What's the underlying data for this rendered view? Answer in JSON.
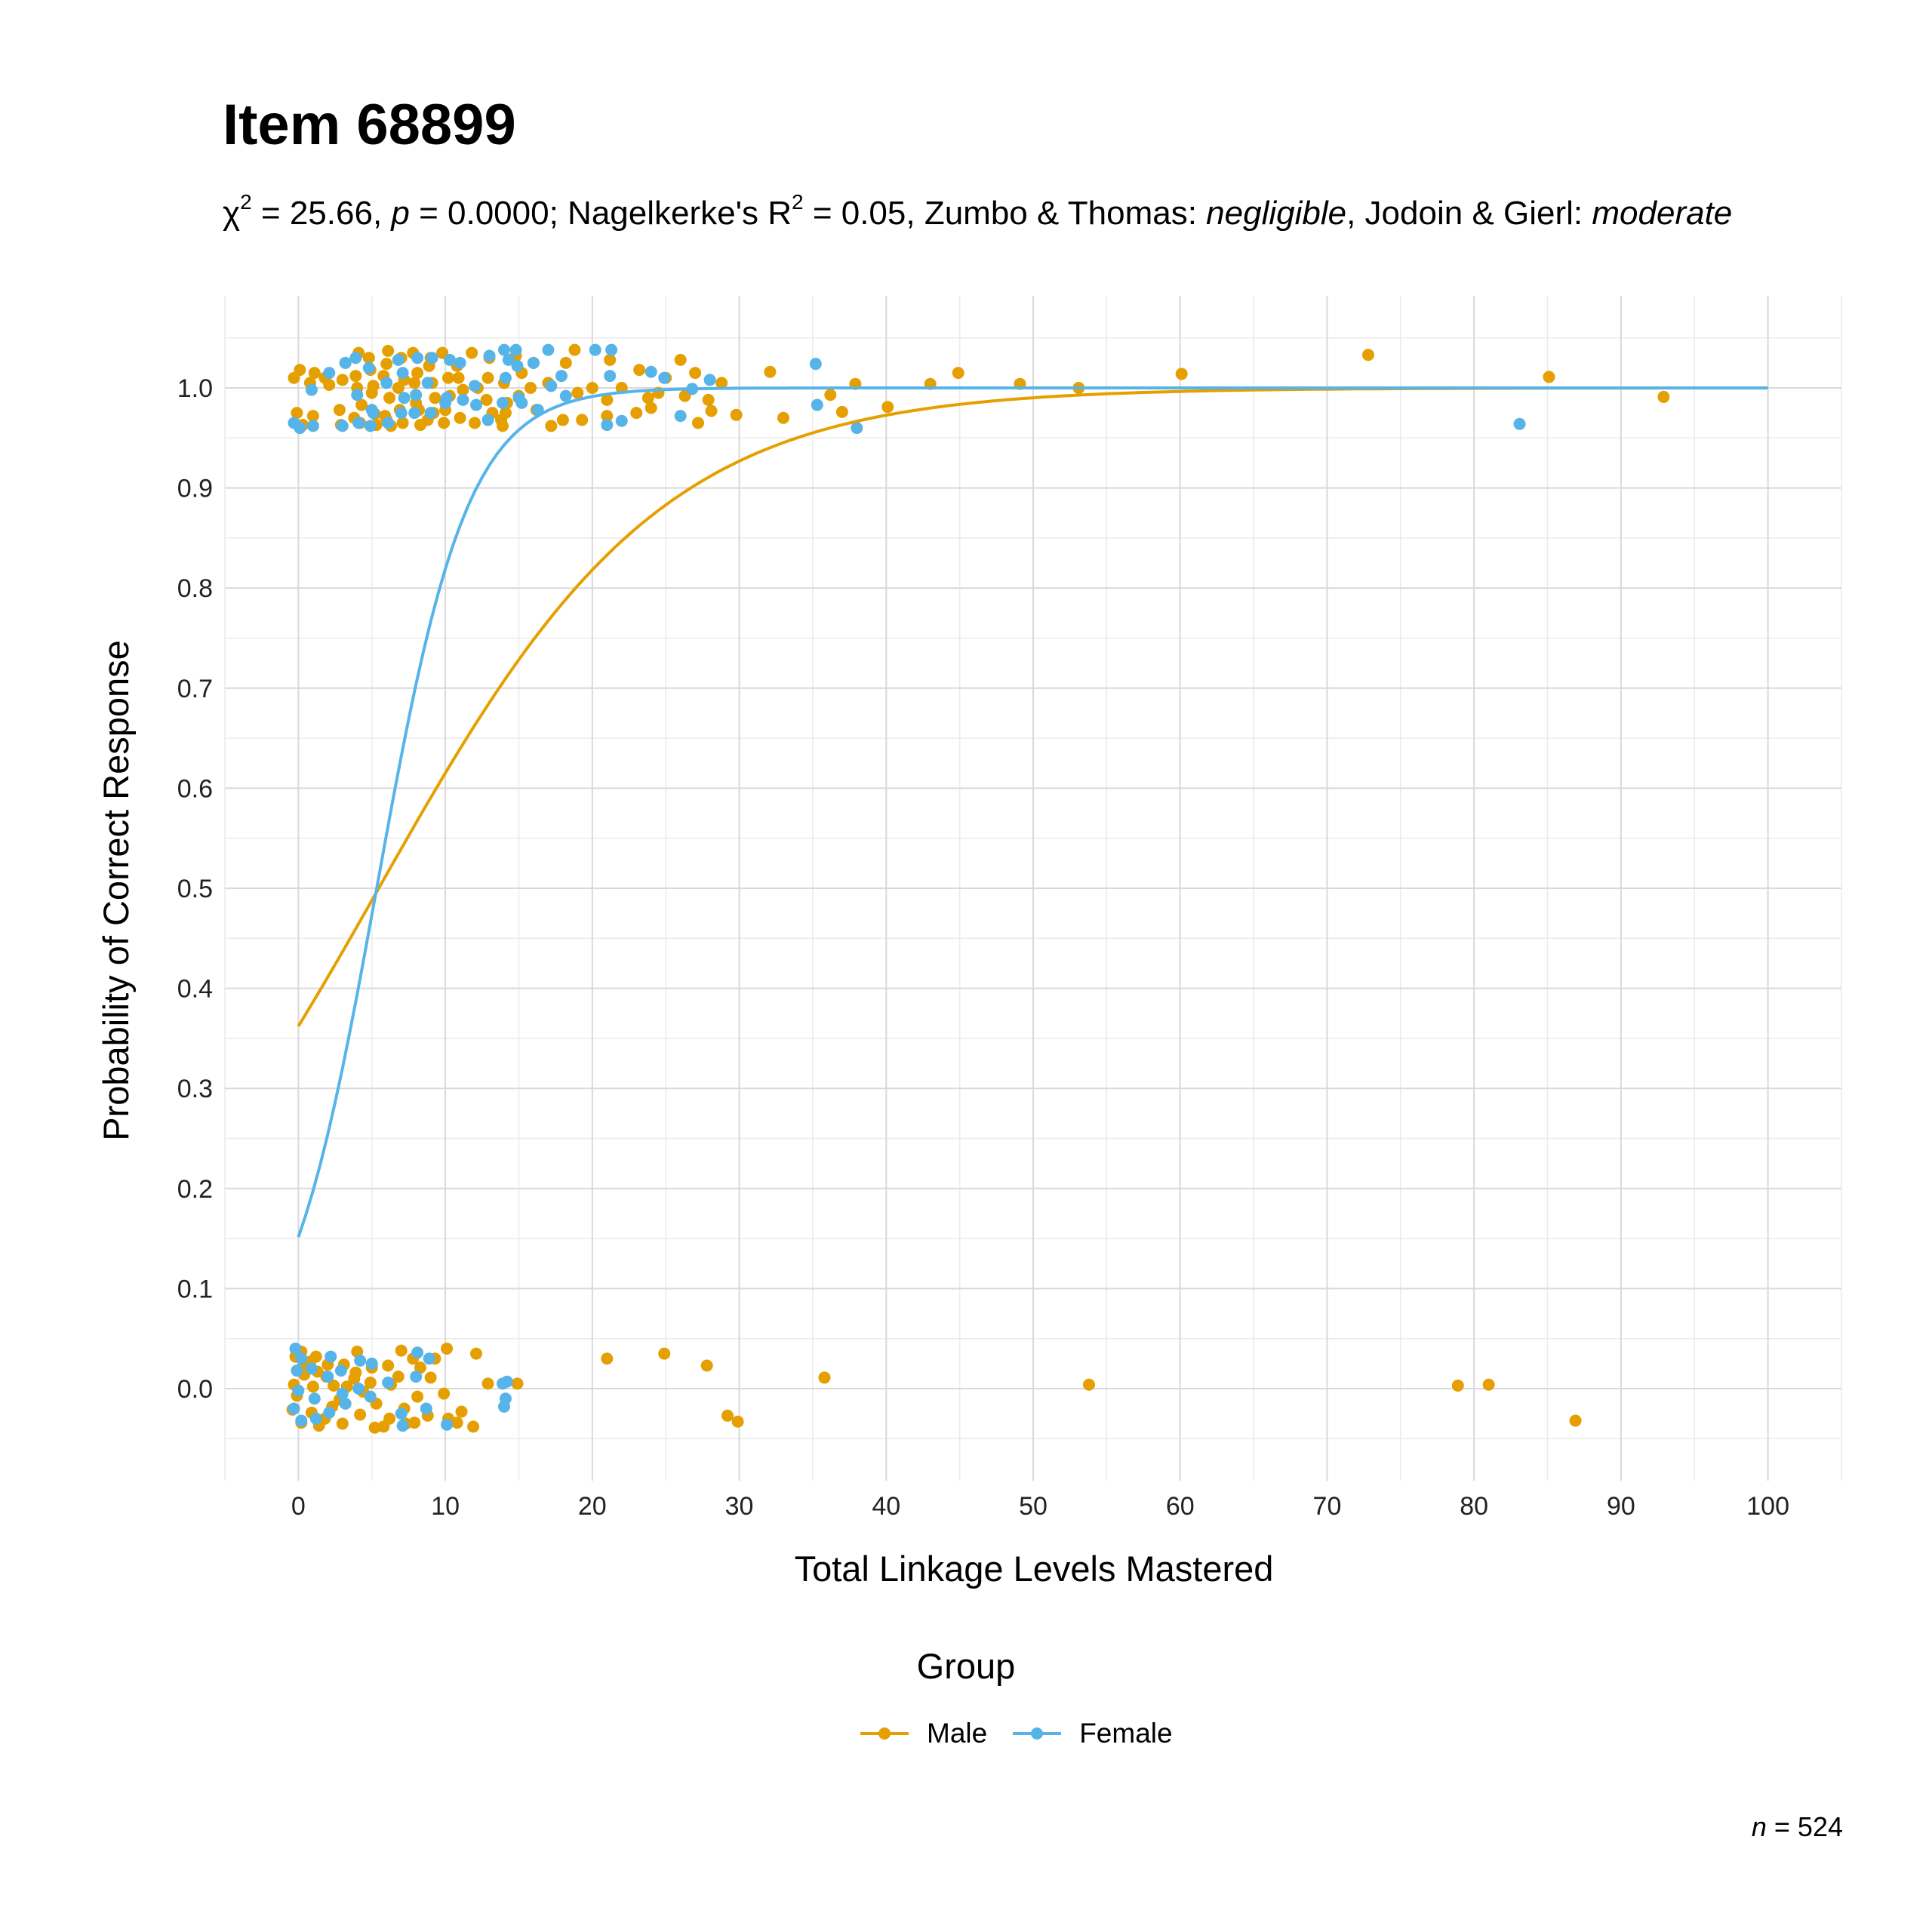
{
  "chart_data": {
    "type": "scatter",
    "title": "Item 68899",
    "subtitle": {
      "chi_label": "χ",
      "chi_sup": "2",
      "chi_value": " = 25.66, ",
      "p_label": "p",
      "p_value": " = 0.0000; Nagelkerke's R",
      "r_sup": "2",
      "r_value": " = 0.05, Zumbo & Thomas: ",
      "zt_rating": "negligible",
      "jg_label": ", Jodoin & Gierl: ",
      "jg_rating": "moderate"
    },
    "xlabel": "Total Linkage Levels Mastered",
    "ylabel": "Probability of Correct Response",
    "xlim": [
      -5,
      105
    ],
    "ylim": [
      -0.092,
      1.092
    ],
    "x_ticks": [
      0,
      10,
      20,
      30,
      40,
      50,
      60,
      70,
      80,
      90,
      100
    ],
    "y_ticks": [
      0.0,
      0.1,
      0.2,
      0.3,
      0.4,
      0.5,
      0.6,
      0.7,
      0.8,
      0.9,
      1.0
    ],
    "grid": true,
    "legend": {
      "title": "Group",
      "position": "bottom",
      "items": [
        {
          "label": "Male",
          "color": "#E69F00"
        },
        {
          "label": "Female",
          "color": "#56B4E9"
        }
      ]
    },
    "caption": {
      "n_label": "n",
      "n_value": " = 524"
    },
    "series": [
      {
        "name": "Male",
        "color": "#E69F00",
        "curve": {
          "intercept": -0.566,
          "slope": 0.1035,
          "x_range": [
            0,
            100
          ]
        },
        "points": [
          [
            -0.3,
            1.01
          ],
          [
            -0.1,
            0.975
          ],
          [
            0.1,
            1.018
          ],
          [
            0.3,
            0.963
          ],
          [
            -0.2,
            0.032
          ],
          [
            0.2,
            -0.034
          ],
          [
            0.4,
            0.014
          ],
          [
            -0.4,
            -0.021
          ],
          [
            0.2,
            0.037
          ],
          [
            -0.1,
            -0.007
          ],
          [
            0.3,
            0.022
          ],
          [
            -0.3,
            0.004
          ],
          [
            0.8,
            1.005
          ],
          [
            1.0,
            0.972
          ],
          [
            1.1,
            1.015
          ],
          [
            1.2,
            0.032
          ],
          [
            0.9,
            -0.024
          ],
          [
            1.3,
            0.017
          ],
          [
            1.0,
            0.002
          ],
          [
            1.4,
            -0.037
          ],
          [
            0.8,
            0.027
          ],
          [
            1.8,
            1.01
          ],
          [
            2.1,
            1.003
          ],
          [
            1.9,
            0.012
          ],
          [
            2.3,
            -0.018
          ],
          [
            2.0,
            0.024
          ],
          [
            2.4,
            0.003
          ],
          [
            1.8,
            -0.03
          ],
          [
            2.8,
            0.978
          ],
          [
            3.0,
            1.008
          ],
          [
            3.2,
            1.025
          ],
          [
            2.9,
            0.963
          ],
          [
            3.1,
            0.024
          ],
          [
            2.8,
            -0.011
          ],
          [
            3.3,
            0.002
          ],
          [
            3.0,
            -0.035
          ],
          [
            3.8,
            0.97
          ],
          [
            4.0,
            1.0
          ],
          [
            4.1,
            1.035
          ],
          [
            3.9,
            1.012
          ],
          [
            4.3,
            0.983
          ],
          [
            4.2,
            0.965
          ],
          [
            4.0,
            0.037
          ],
          [
            3.9,
            0.016
          ],
          [
            4.2,
            -0.026
          ],
          [
            4.4,
            -0.003
          ],
          [
            3.8,
            0.01
          ],
          [
            4.8,
            1.03
          ],
          [
            5.0,
            0.995
          ],
          [
            5.1,
            1.002
          ],
          [
            5.3,
            0.963
          ],
          [
            4.9,
            1.018
          ],
          [
            5.2,
            0.974
          ],
          [
            5.0,
            0.021
          ],
          [
            5.2,
            -0.039
          ],
          [
            4.9,
            0.006
          ],
          [
            5.3,
            -0.015
          ],
          [
            5.8,
            1.012
          ],
          [
            6.0,
            0.968
          ],
          [
            6.1,
            1.037
          ],
          [
            6.2,
            0.99
          ],
          [
            6.0,
            1.024
          ],
          [
            5.9,
            0.972
          ],
          [
            6.3,
            0.962
          ],
          [
            6.1,
            0.023
          ],
          [
            5.8,
            -0.038
          ],
          [
            6.2,
            -0.03
          ],
          [
            6.3,
            0.004
          ],
          [
            6.8,
            1.0
          ],
          [
            7.0,
            1.03
          ],
          [
            7.1,
            0.965
          ],
          [
            7.2,
            1.008
          ],
          [
            6.9,
            0.978
          ],
          [
            7.0,
            0.038
          ],
          [
            7.2,
            -0.02
          ],
          [
            6.8,
            0.012
          ],
          [
            7.3,
            -0.035
          ],
          [
            7.8,
            1.035
          ],
          [
            8.0,
            0.985
          ],
          [
            8.1,
            1.015
          ],
          [
            8.3,
            0.963
          ],
          [
            7.9,
            1.005
          ],
          [
            8.2,
            0.978
          ],
          [
            7.8,
            0.03
          ],
          [
            8.1,
            -0.008
          ],
          [
            8.3,
            0.021
          ],
          [
            7.9,
            -0.034
          ],
          [
            8.8,
            0.968
          ],
          [
            9.0,
            1.03
          ],
          [
            9.1,
            1.005
          ],
          [
            9.3,
            0.99
          ],
          [
            8.9,
            1.022
          ],
          [
            9.2,
            0.975
          ],
          [
            9.0,
            0.011
          ],
          [
            8.8,
            -0.027
          ],
          [
            9.3,
            0.03
          ],
          [
            9.8,
            1.035
          ],
          [
            10.0,
            0.978
          ],
          [
            10.2,
            1.01
          ],
          [
            9.9,
            0.965
          ],
          [
            10.3,
            0.992
          ],
          [
            10.1,
            0.04
          ],
          [
            9.9,
            -0.005
          ],
          [
            10.2,
            -0.03
          ],
          [
            10.8,
            1.022
          ],
          [
            11.0,
            0.97
          ],
          [
            11.2,
            0.998
          ],
          [
            10.9,
            1.01
          ],
          [
            11.1,
            -0.023
          ],
          [
            10.8,
            -0.034
          ],
          [
            11.8,
            1.035
          ],
          [
            12.0,
            0.965
          ],
          [
            12.2,
            1.0
          ],
          [
            12.1,
            0.035
          ],
          [
            11.9,
            -0.038
          ],
          [
            12.8,
            0.988
          ],
          [
            13.0,
            1.03
          ],
          [
            13.2,
            0.975
          ],
          [
            12.9,
            1.01
          ],
          [
            12.9,
            0.005
          ],
          [
            13.8,
            0.968
          ],
          [
            14.0,
            1.005
          ],
          [
            14.2,
            0.985
          ],
          [
            13.9,
            0.962
          ],
          [
            14.1,
            0.975
          ],
          [
            14.8,
            1.032
          ],
          [
            15.0,
            0.992
          ],
          [
            15.2,
            1.015
          ],
          [
            14.9,
            0.005
          ],
          [
            15.8,
            1.0
          ],
          [
            16.0,
            1.025
          ],
          [
            16.2,
            0.978
          ],
          [
            17.0,
            1.005
          ],
          [
            17.2,
            0.962
          ],
          [
            18.0,
            0.968
          ],
          [
            18.2,
            1.025
          ],
          [
            18.8,
            1.038
          ],
          [
            19.0,
            0.995
          ],
          [
            19.3,
            0.968
          ],
          [
            20.0,
            1.0
          ],
          [
            21.0,
            0.988
          ],
          [
            21.2,
            1.028
          ],
          [
            21.0,
            0.972
          ],
          [
            21.0,
            0.03
          ],
          [
            22.0,
            1.0
          ],
          [
            23.0,
            0.975
          ],
          [
            23.2,
            1.018
          ],
          [
            23.8,
            0.99
          ],
          [
            24.0,
            0.98
          ],
          [
            24.5,
            0.995
          ],
          [
            25.0,
            1.01
          ],
          [
            24.9,
            0.035
          ],
          [
            26.0,
            1.028
          ],
          [
            26.3,
            0.992
          ],
          [
            27.0,
            1.015
          ],
          [
            27.2,
            0.965
          ],
          [
            27.9,
            0.988
          ],
          [
            28.1,
            0.977
          ],
          [
            28.8,
            1.005
          ],
          [
            27.8,
            0.023
          ],
          [
            29.2,
            -0.027
          ],
          [
            29.8,
            0.973
          ],
          [
            29.9,
            -0.033
          ],
          [
            32.1,
            1.016
          ],
          [
            33.0,
            0.97
          ],
          [
            35.8,
            0.011
          ],
          [
            36.2,
            0.993
          ],
          [
            37.0,
            0.976
          ],
          [
            37.9,
            1.004
          ],
          [
            40.1,
            0.981
          ],
          [
            43.0,
            1.004
          ],
          [
            44.9,
            1.015
          ],
          [
            49.1,
            1.004
          ],
          [
            53.1,
            1.0
          ],
          [
            53.8,
            0.004
          ],
          [
            60.1,
            1.014
          ],
          [
            72.8,
            1.033
          ],
          [
            78.9,
            0.003
          ],
          [
            81.0,
            0.004
          ],
          [
            85.1,
            1.011
          ],
          [
            86.9,
            -0.032
          ],
          [
            92.9,
            0.991
          ]
        ]
      },
      {
        "name": "Female",
        "color": "#56B4E9",
        "curve": {
          "intercept": -1.724,
          "slope": 0.3235,
          "x_range": [
            0,
            100
          ]
        },
        "points": [
          [
            -0.3,
            0.965
          ],
          [
            0.1,
            0.96
          ],
          [
            -0.2,
            0.04
          ],
          [
            0.0,
            -0.002
          ],
          [
            0.2,
            -0.032
          ],
          [
            -0.1,
            0.018
          ],
          [
            0.2,
            0.03
          ],
          [
            -0.3,
            -0.02
          ],
          [
            0.9,
            0.998
          ],
          [
            1.0,
            0.962
          ],
          [
            1.1,
            -0.01
          ],
          [
            0.9,
            0.02
          ],
          [
            1.2,
            -0.03
          ],
          [
            2.1,
            1.015
          ],
          [
            2.0,
            0.012
          ],
          [
            2.2,
            0.032
          ],
          [
            2.1,
            -0.024
          ],
          [
            3.0,
            0.962
          ],
          [
            3.2,
            1.025
          ],
          [
            3.0,
            -0.005
          ],
          [
            2.9,
            0.018
          ],
          [
            3.2,
            -0.015
          ],
          [
            4.0,
            0.993
          ],
          [
            4.1,
            0.965
          ],
          [
            3.9,
            1.03
          ],
          [
            4.1,
            0.0
          ],
          [
            4.2,
            0.028
          ],
          [
            4.8,
            1.02
          ],
          [
            5.0,
            0.978
          ],
          [
            4.9,
            0.962
          ],
          [
            5.1,
            0.975
          ],
          [
            5.0,
            0.025
          ],
          [
            4.9,
            -0.008
          ],
          [
            6.1,
            0.965
          ],
          [
            6.0,
            1.005
          ],
          [
            6.1,
            0.006
          ],
          [
            7.0,
            0.975
          ],
          [
            7.1,
            1.015
          ],
          [
            6.8,
            1.028
          ],
          [
            7.2,
            0.99
          ],
          [
            7.1,
            -0.037
          ],
          [
            7.0,
            -0.025
          ],
          [
            8.0,
            0.993
          ],
          [
            8.1,
            1.03
          ],
          [
            7.9,
            0.975
          ],
          [
            8.1,
            0.036
          ],
          [
            8.0,
            0.012
          ],
          [
            8.8,
            1.005
          ],
          [
            9.0,
            0.975
          ],
          [
            9.1,
            1.03
          ],
          [
            8.9,
            0.03
          ],
          [
            8.7,
            -0.02
          ],
          [
            10.1,
            0.99
          ],
          [
            10.3,
            1.028
          ],
          [
            10.0,
            0.985
          ],
          [
            10.1,
            -0.036
          ],
          [
            11.0,
            1.025
          ],
          [
            11.2,
            0.988
          ],
          [
            12.0,
            1.002
          ],
          [
            12.1,
            0.983
          ],
          [
            13.0,
            1.032
          ],
          [
            12.9,
            0.968
          ],
          [
            13.9,
            0.985
          ],
          [
            14.1,
            1.01
          ],
          [
            14.0,
            1.038
          ],
          [
            14.3,
            1.028
          ],
          [
            13.9,
            0.005
          ],
          [
            14.0,
            -0.018
          ],
          [
            14.2,
            0.007
          ],
          [
            14.1,
            -0.01
          ],
          [
            14.8,
            1.038
          ],
          [
            15.0,
            0.99
          ],
          [
            15.2,
            0.985
          ],
          [
            14.9,
            1.022
          ],
          [
            16.0,
            1.025
          ],
          [
            16.3,
            0.978
          ],
          [
            17.0,
            1.038
          ],
          [
            17.2,
            1.002
          ],
          [
            17.9,
            1.012
          ],
          [
            18.2,
            0.992
          ],
          [
            20.2,
            1.038
          ],
          [
            21.0,
            0.963
          ],
          [
            21.2,
            1.012
          ],
          [
            21.3,
            1.038
          ],
          [
            22.0,
            0.967
          ],
          [
            24.0,
            1.016
          ],
          [
            24.9,
            1.01
          ],
          [
            26.0,
            0.972
          ],
          [
            26.8,
            0.999
          ],
          [
            28.0,
            1.008
          ],
          [
            35.2,
            1.024
          ],
          [
            35.3,
            0.983
          ],
          [
            38.0,
            0.96
          ],
          [
            83.1,
            0.964
          ]
        ]
      }
    ]
  }
}
